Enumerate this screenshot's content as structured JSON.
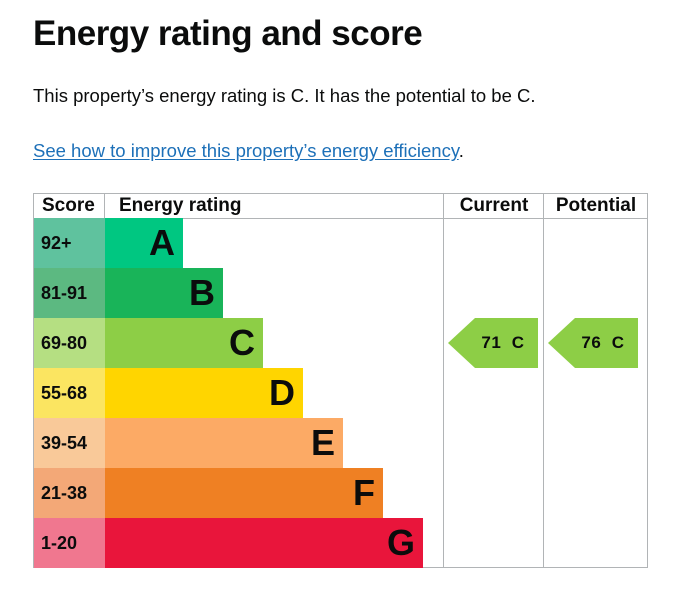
{
  "heading": "Energy rating and score",
  "summary": "This property’s energy rating is C. It has the potential to be C.",
  "link": {
    "text": "See how to improve this property’s energy efficiency",
    "suffix": "."
  },
  "table": {
    "headers": {
      "score": "Score",
      "rating": "Energy rating",
      "current": "Current",
      "potential": "Potential"
    },
    "bands": [
      {
        "score": "92+",
        "letter": "A",
        "score_bg": "#5fc29e",
        "bar_color": "#00c781"
      },
      {
        "score": "81-91",
        "letter": "B",
        "score_bg": "#5cb981",
        "bar_color": "#19b459"
      },
      {
        "score": "69-80",
        "letter": "C",
        "score_bg": "#b5df82",
        "bar_color": "#8dce46"
      },
      {
        "score": "55-68",
        "letter": "D",
        "score_bg": "#fbe561",
        "bar_color": "#ffd500"
      },
      {
        "score": "39-54",
        "letter": "E",
        "score_bg": "#f9c999",
        "bar_color": "#fcaa65"
      },
      {
        "score": "21-38",
        "letter": "F",
        "score_bg": "#f3a877",
        "bar_color": "#ef8023"
      },
      {
        "score": "1-20",
        "letter": "G",
        "score_bg": "#f0778f",
        "bar_color": "#e9153b"
      }
    ],
    "current": {
      "score": "71",
      "letter": "C",
      "band_index": 2,
      "color": "#8dce46"
    },
    "potential": {
      "score": "76",
      "letter": "C",
      "band_index": 2,
      "color": "#8dce46"
    }
  }
}
